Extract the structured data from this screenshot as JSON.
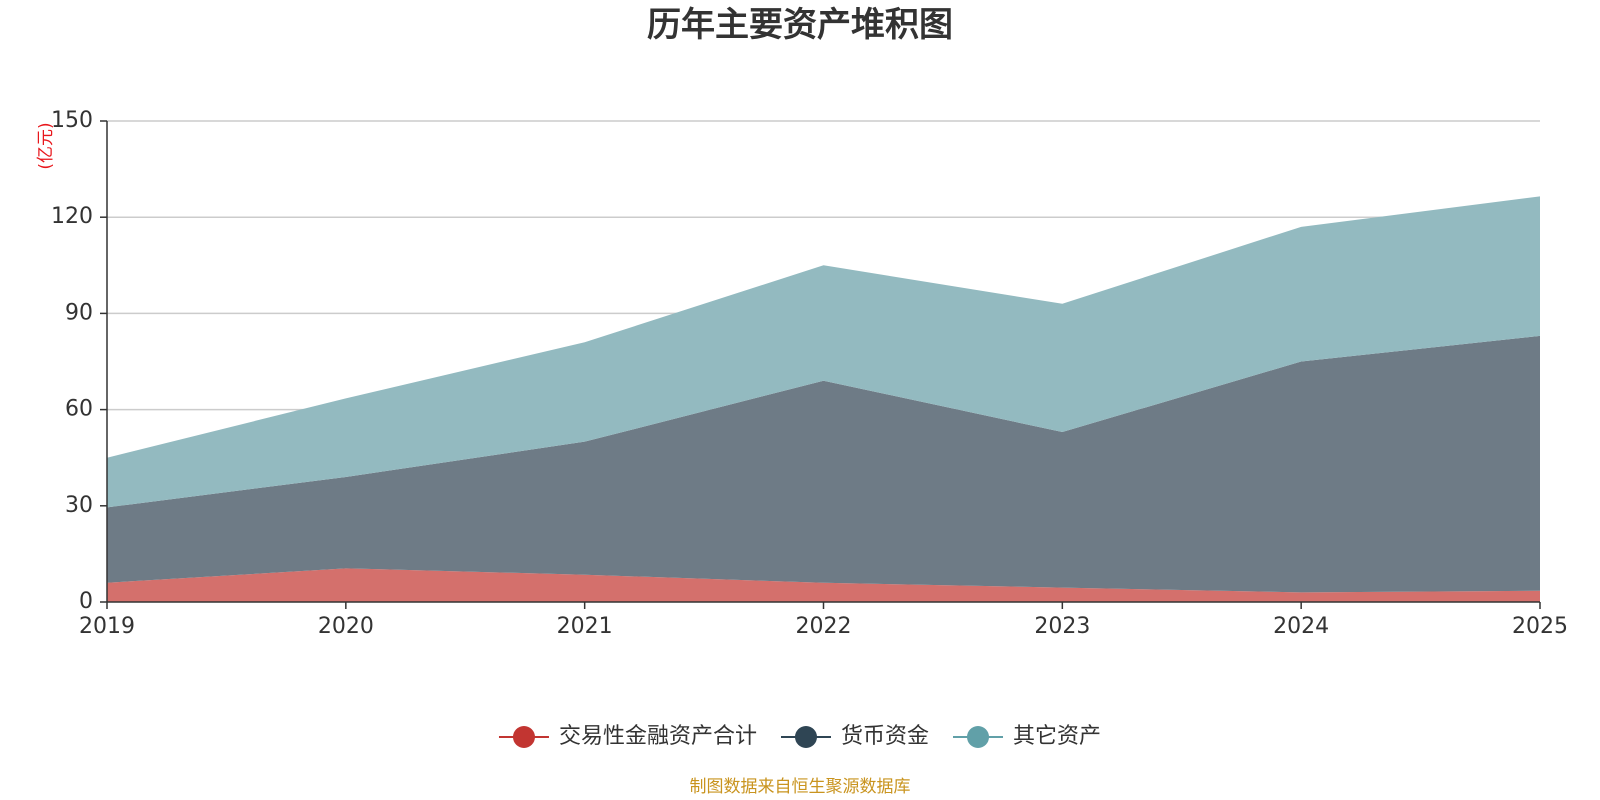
{
  "chart_data": {
    "type": "area",
    "stacked": true,
    "title": "历年主要资产堆积图",
    "y_unit": "(亿元)",
    "x": [
      "2019",
      "2020",
      "2021",
      "2022",
      "2023",
      "2024",
      "2025"
    ],
    "ylim": [
      0,
      150
    ],
    "yticks": [
      0,
      30,
      60,
      90,
      120,
      150
    ],
    "grid": true,
    "legend_position": "bottom",
    "series": [
      {
        "name": "交易性金融资产合计",
        "color": "#c23531",
        "fill": "#d4706c",
        "values": [
          6,
          10.5,
          8.5,
          6,
          4.5,
          3,
          3.5
        ]
      },
      {
        "name": "货币资金",
        "color": "#2f4554",
        "fill": "#6e7b86",
        "values": [
          23.5,
          28.5,
          41.5,
          63,
          48.5,
          72,
          79.5
        ]
      },
      {
        "name": "其它资产",
        "color": "#61a0a8",
        "fill": "#93bac0",
        "values": [
          15.5,
          24.5,
          31,
          36,
          40,
          42,
          43.5
        ]
      }
    ],
    "source": "制图数据来自恒生聚源数据库"
  }
}
